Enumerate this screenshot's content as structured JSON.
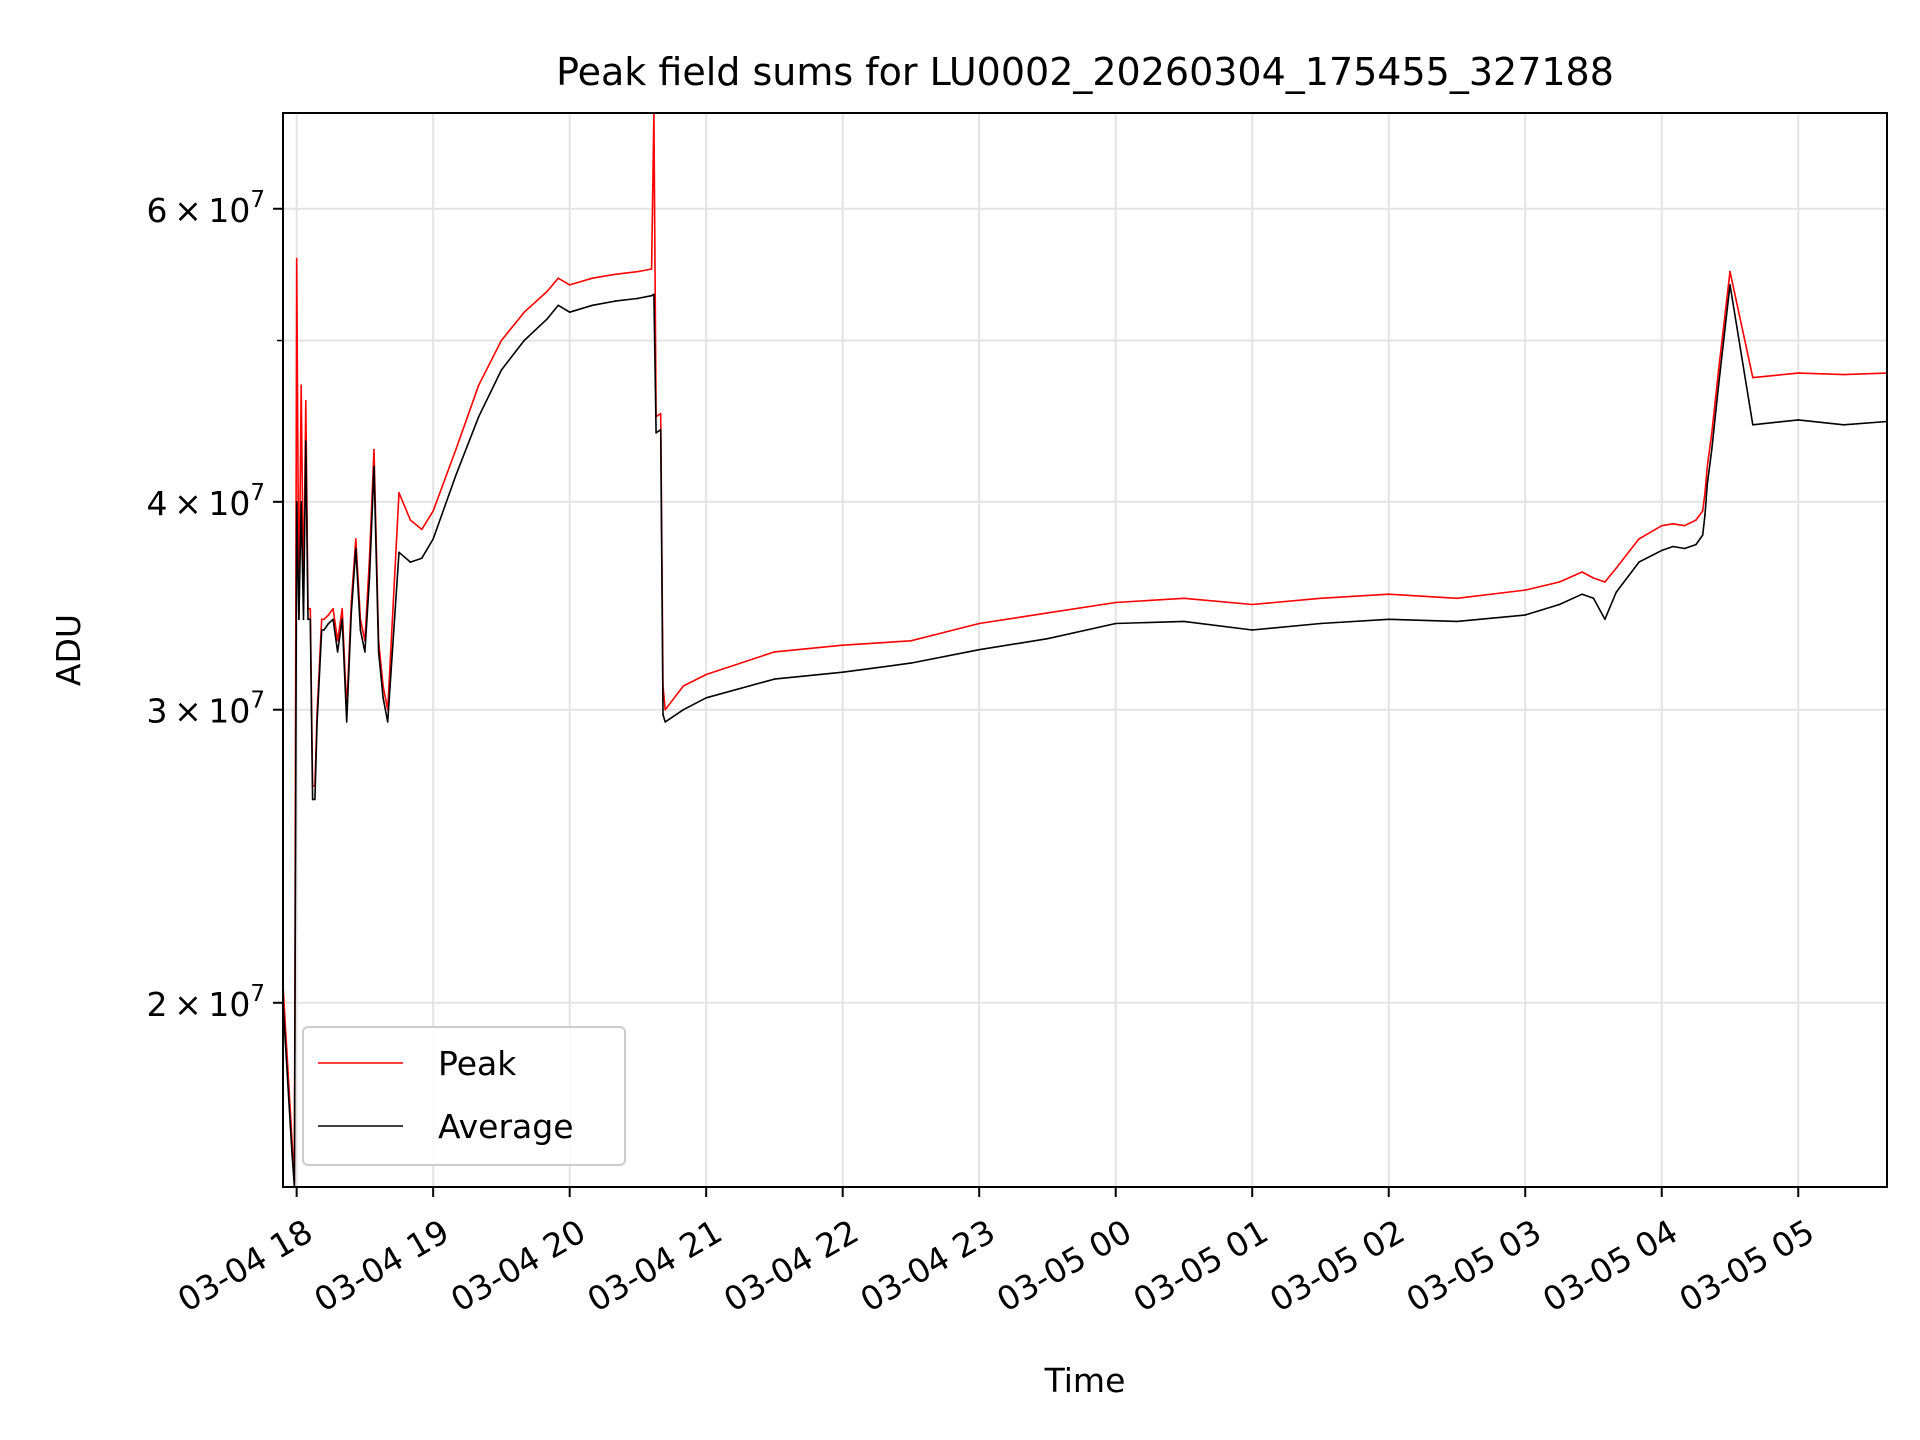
{
  "chart_data": {
    "type": "line",
    "title": "Peak field sums for LU0002_20260304_175455_327188",
    "xlabel": "Time",
    "ylabel": "ADU",
    "yscale": "log",
    "grid": true,
    "legend_position": "lower-left",
    "xlim": [
      "2026-03-04 17:54",
      "2026-03-05 05:39"
    ],
    "ylim": [
      15500000,
      68500000
    ],
    "x_ticks": [
      "2026-03-04 18:00",
      "2026-03-04 19:00",
      "2026-03-04 20:00",
      "2026-03-04 21:00",
      "2026-03-04 22:00",
      "2026-03-04 23:00",
      "2026-03-05 00:00",
      "2026-03-05 01:00",
      "2026-03-05 02:00",
      "2026-03-05 03:00",
      "2026-03-05 04:00",
      "2026-03-05 05:00"
    ],
    "x_tick_labels": [
      "03-04 18",
      "03-04 19",
      "03-04 20",
      "03-04 21",
      "03-04 22",
      "03-04 23",
      "03-05 00",
      "03-05 01",
      "03-05 02",
      "03-05 03",
      "03-05 04",
      "03-05 05"
    ],
    "y_major_ticks": [
      {
        "value": 20000000,
        "mantissa": "2",
        "exponent": "7"
      },
      {
        "value": 30000000,
        "mantissa": "3",
        "exponent": "7"
      },
      {
        "value": 40000000,
        "mantissa": "4",
        "exponent": "7"
      },
      {
        "value": 60000000,
        "mantissa": "6",
        "exponent": "7"
      }
    ],
    "y_minor_ticks": [
      50000000
    ],
    "series": [
      {
        "name": "Peak",
        "color": "#ff0000",
        "x": [
          "2026-03-04 17:54",
          "2026-03-04 17:58",
          "2026-03-04 17:59",
          "2026-03-04 18:00",
          "2026-03-04 18:01",
          "2026-03-04 18:02",
          "2026-03-04 18:03",
          "2026-03-04 18:04",
          "2026-03-04 18:05",
          "2026-03-04 18:06",
          "2026-03-04 18:07",
          "2026-03-04 18:08",
          "2026-03-04 18:09",
          "2026-03-04 18:11",
          "2026-03-04 18:12",
          "2026-03-04 18:14",
          "2026-03-04 18:16",
          "2026-03-04 18:18",
          "2026-03-04 18:20",
          "2026-03-04 18:22",
          "2026-03-04 18:24",
          "2026-03-04 18:26",
          "2026-03-04 18:28",
          "2026-03-04 18:30",
          "2026-03-04 18:32",
          "2026-03-04 18:34",
          "2026-03-04 18:36",
          "2026-03-04 18:38",
          "2026-03-04 18:40",
          "2026-03-04 18:45",
          "2026-03-04 18:50",
          "2026-03-04 18:55",
          "2026-03-04 19:00",
          "2026-03-04 19:10",
          "2026-03-04 19:20",
          "2026-03-04 19:30",
          "2026-03-04 19:40",
          "2026-03-04 19:50",
          "2026-03-04 19:55",
          "2026-03-04 20:00",
          "2026-03-04 20:10",
          "2026-03-04 20:20",
          "2026-03-04 20:30",
          "2026-03-04 20:36",
          "2026-03-04 20:37",
          "2026-03-04 20:38",
          "2026-03-04 20:40",
          "2026-03-04 20:41",
          "2026-03-04 20:42",
          "2026-03-04 20:50",
          "2026-03-04 21:00",
          "2026-03-04 21:30",
          "2026-03-04 22:00",
          "2026-03-04 22:30",
          "2026-03-04 23:00",
          "2026-03-04 23:30",
          "2026-03-05 00:00",
          "2026-03-05 00:30",
          "2026-03-05 01:00",
          "2026-03-05 01:30",
          "2026-03-05 02:00",
          "2026-03-05 02:30",
          "2026-03-05 03:00",
          "2026-03-05 03:15",
          "2026-03-05 03:25",
          "2026-03-05 03:30",
          "2026-03-05 03:35",
          "2026-03-05 03:40",
          "2026-03-05 03:50",
          "2026-03-05 04:00",
          "2026-03-05 04:05",
          "2026-03-05 04:10",
          "2026-03-05 04:15",
          "2026-03-05 04:18",
          "2026-03-05 04:19",
          "2026-03-05 04:20",
          "2026-03-05 04:22",
          "2026-03-05 04:25",
          "2026-03-05 04:30",
          "2026-03-05 04:40",
          "2026-03-05 05:00",
          "2026-03-05 05:20",
          "2026-03-05 05:39"
        ],
        "y": [
          20500000,
          16500000,
          15600000,
          56000000,
          34000000,
          47000000,
          35000000,
          46000000,
          34500000,
          34500000,
          27000000,
          27000000,
          29900000,
          34000000,
          34000000,
          34200000,
          34500000,
          33000000,
          34500000,
          30000000,
          34800000,
          38000000,
          34000000,
          33000000,
          37000000,
          43000000,
          33000000,
          31000000,
          30000000,
          40500000,
          39000000,
          38500000,
          39500000,
          43000000,
          47000000,
          50000000,
          52000000,
          53500000,
          54500000,
          54000000,
          54500000,
          54800000,
          55000000,
          55200000,
          68500000,
          45000000,
          45200000,
          31000000,
          30000000,
          31000000,
          31500000,
          32500000,
          32800000,
          33000000,
          33800000,
          34300000,
          34800000,
          35000000,
          34700000,
          35000000,
          35200000,
          35000000,
          35400000,
          35800000,
          36300000,
          36000000,
          35800000,
          36500000,
          38000000,
          38700000,
          38800000,
          38700000,
          39000000,
          39500000,
          40500000,
          42000000,
          44000000,
          48000000,
          55000000,
          47500000,
          47800000,
          47700000,
          47800000
        ]
      },
      {
        "name": "Average",
        "color": "#000000",
        "x": [
          "2026-03-04 17:54",
          "2026-03-04 17:58",
          "2026-03-04 17:59",
          "2026-03-04 18:00",
          "2026-03-04 18:01",
          "2026-03-04 18:02",
          "2026-03-04 18:03",
          "2026-03-04 18:04",
          "2026-03-04 18:05",
          "2026-03-04 18:06",
          "2026-03-04 18:07",
          "2026-03-04 18:08",
          "2026-03-04 18:09",
          "2026-03-04 18:11",
          "2026-03-04 18:12",
          "2026-03-04 18:14",
          "2026-03-04 18:16",
          "2026-03-04 18:18",
          "2026-03-04 18:20",
          "2026-03-04 18:22",
          "2026-03-04 18:24",
          "2026-03-04 18:26",
          "2026-03-04 18:28",
          "2026-03-04 18:30",
          "2026-03-04 18:32",
          "2026-03-04 18:34",
          "2026-03-04 18:36",
          "2026-03-04 18:38",
          "2026-03-04 18:40",
          "2026-03-04 18:45",
          "2026-03-04 18:50",
          "2026-03-04 18:55",
          "2026-03-04 19:00",
          "2026-03-04 19:10",
          "2026-03-04 19:20",
          "2026-03-04 19:30",
          "2026-03-04 19:40",
          "2026-03-04 19:50",
          "2026-03-04 19:55",
          "2026-03-04 20:00",
          "2026-03-04 20:10",
          "2026-03-04 20:20",
          "2026-03-04 20:30",
          "2026-03-04 20:36",
          "2026-03-04 20:37",
          "2026-03-04 20:38",
          "2026-03-04 20:40",
          "2026-03-04 20:41",
          "2026-03-04 20:42",
          "2026-03-04 20:50",
          "2026-03-04 21:00",
          "2026-03-04 21:30",
          "2026-03-04 22:00",
          "2026-03-04 22:30",
          "2026-03-04 23:00",
          "2026-03-04 23:30",
          "2026-03-05 00:00",
          "2026-03-05 00:30",
          "2026-03-05 01:00",
          "2026-03-05 01:30",
          "2026-03-05 02:00",
          "2026-03-05 02:30",
          "2026-03-05 03:00",
          "2026-03-05 03:15",
          "2026-03-05 03:25",
          "2026-03-05 03:30",
          "2026-03-05 03:35",
          "2026-03-05 03:40",
          "2026-03-05 03:50",
          "2026-03-05 04:00",
          "2026-03-05 04:05",
          "2026-03-05 04:10",
          "2026-03-05 04:15",
          "2026-03-05 04:18",
          "2026-03-05 04:19",
          "2026-03-05 04:20",
          "2026-03-05 04:22",
          "2026-03-05 04:25",
          "2026-03-05 04:30",
          "2026-03-05 04:40",
          "2026-03-05 05:00",
          "2026-03-05 05:20",
          "2026-03-05 05:39"
        ],
        "y": [
          20000000,
          16200000,
          15500000,
          40000000,
          34000000,
          40000000,
          34000000,
          43500000,
          34000000,
          34000000,
          26500000,
          26500000,
          29500000,
          33500000,
          33500000,
          33800000,
          34000000,
          32500000,
          34000000,
          29500000,
          34300000,
          37500000,
          33500000,
          32500000,
          36000000,
          42000000,
          32500000,
          30500000,
          29500000,
          37300000,
          36800000,
          37000000,
          38000000,
          41500000,
          45000000,
          48000000,
          50000000,
          51500000,
          52500000,
          52000000,
          52500000,
          52800000,
          53000000,
          53200000,
          53300000,
          44000000,
          44200000,
          29800000,
          29500000,
          30000000,
          30500000,
          31300000,
          31600000,
          32000000,
          32600000,
          33100000,
          33800000,
          33900000,
          33500000,
          33800000,
          34000000,
          33900000,
          34200000,
          34700000,
          35200000,
          35000000,
          34000000,
          35300000,
          36800000,
          37400000,
          37600000,
          37500000,
          37700000,
          38200000,
          39300000,
          41000000,
          43000000,
          47000000,
          54000000,
          44500000,
          44800000,
          44500000,
          44700000
        ]
      }
    ]
  }
}
